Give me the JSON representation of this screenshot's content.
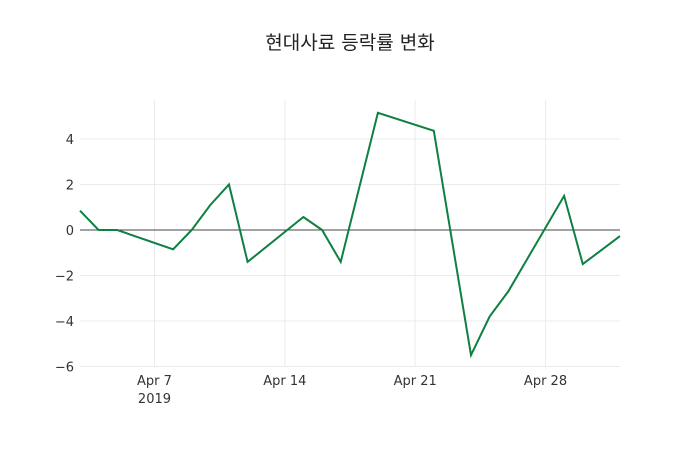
{
  "chart_data": {
    "type": "line",
    "title": "현대사료 등락률 변화",
    "xlabel": "",
    "ylabel": "",
    "x": [
      "2019-04-03",
      "2019-04-04",
      "2019-04-05",
      "2019-04-08",
      "2019-04-09",
      "2019-04-10",
      "2019-04-11",
      "2019-04-12",
      "2019-04-15",
      "2019-04-16",
      "2019-04-17",
      "2019-04-19",
      "2019-04-22",
      "2019-04-24",
      "2019-04-25",
      "2019-04-26",
      "2019-04-29",
      "2019-04-30",
      "2019-05-02"
    ],
    "series": [
      {
        "name": "등락률",
        "color": "#0e8042",
        "values": [
          0.85,
          0.0,
          0.0,
          -0.85,
          0.0,
          1.1,
          2.0,
          -1.4,
          0.57,
          0.0,
          -1.4,
          5.15,
          4.36,
          -5.5,
          -3.8,
          -2.7,
          1.5,
          -1.5,
          -0.27
        ]
      }
    ],
    "x_ticks": [
      {
        "date": "2019-04-07",
        "label": "Apr 7",
        "sublabel": "2019"
      },
      {
        "date": "2019-04-14",
        "label": "Apr 14",
        "sublabel": ""
      },
      {
        "date": "2019-04-21",
        "label": "Apr 21",
        "sublabel": ""
      },
      {
        "date": "2019-04-28",
        "label": "Apr 28",
        "sublabel": ""
      }
    ],
    "y_ticks": [
      4,
      2,
      0,
      -2,
      -4,
      -6
    ],
    "y_tick_labels": [
      "4",
      "2",
      "0",
      "−2",
      "−4",
      "−6"
    ],
    "xlim": [
      "2019-04-03",
      "2019-05-02"
    ],
    "ylim": [
      -6.0,
      5.7
    ],
    "grid": true,
    "zeroline": true,
    "legend": "none"
  }
}
